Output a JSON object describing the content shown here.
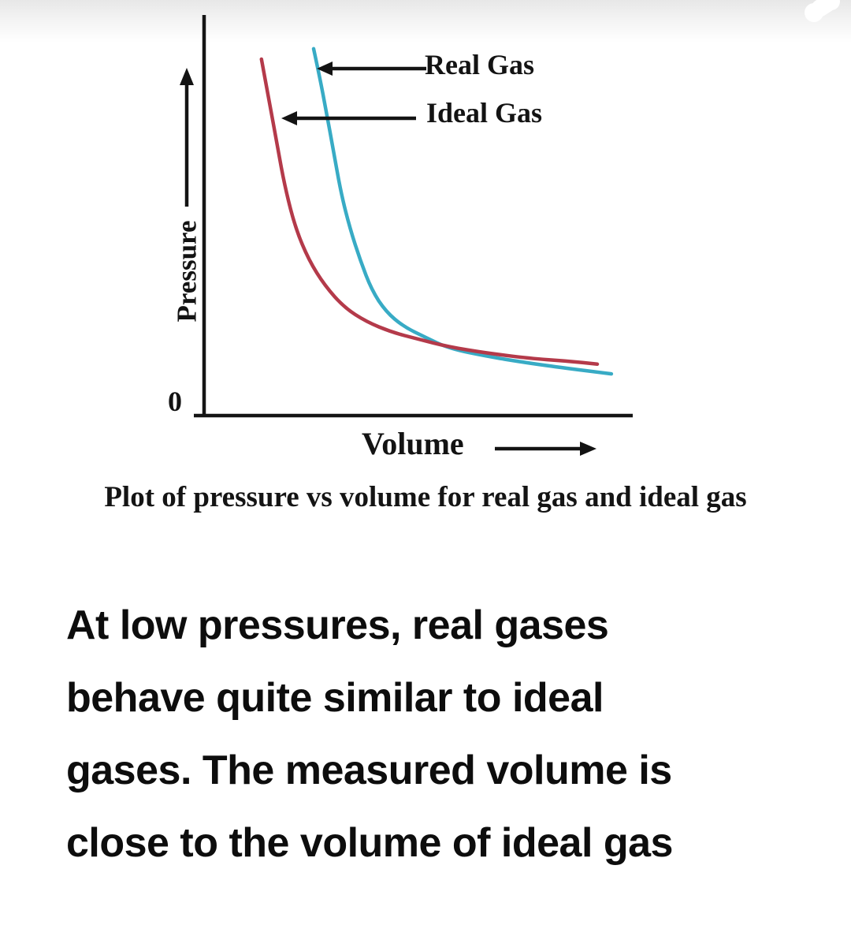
{
  "figure": {
    "curve_labels": {
      "real": "Real Gas",
      "ideal": "Ideal Gas"
    },
    "axis_labels": {
      "y": "Pressure",
      "x": "Volume",
      "origin": "0"
    },
    "caption": "Plot of pressure vs volume for real gas and ideal gas",
    "colors": {
      "real_gas_curve": "#38abc5",
      "ideal_gas_curve": "#b43a4a",
      "axis": "#151515"
    }
  },
  "chart_data": {
    "type": "line",
    "title": "Plot of pressure vs volume for real gas and ideal gas",
    "xlabel": "Volume",
    "ylabel": "Pressure",
    "x_range": [
      0,
      10
    ],
    "y_range": [
      0,
      10
    ],
    "grid": false,
    "tick_labels": {
      "x": [],
      "y": [
        "0"
      ]
    },
    "legend": "arrow annotations inside plot, top area",
    "annotations": [
      {
        "text": "Real Gas",
        "points_to": "cyan curve"
      },
      {
        "text": "Ideal Gas",
        "points_to": "red curve"
      }
    ],
    "series": [
      {
        "name": "Real Gas",
        "color": "#38abc5",
        "points": [
          [
            2.56,
            9.14
          ],
          [
            2.71,
            8.39
          ],
          [
            2.85,
            7.6
          ],
          [
            3.02,
            6.62
          ],
          [
            3.2,
            5.54
          ],
          [
            3.41,
            4.66
          ],
          [
            3.65,
            3.87
          ],
          [
            3.92,
            3.12
          ],
          [
            4.25,
            2.59
          ],
          [
            4.66,
            2.22
          ],
          [
            5.17,
            1.95
          ],
          [
            5.73,
            1.67
          ],
          [
            6.65,
            1.47
          ],
          [
            7.39,
            1.34
          ],
          [
            8.31,
            1.2
          ],
          [
            9.52,
            1.04
          ]
        ]
      },
      {
        "name": "Ideal Gas",
        "color": "#b43a4a",
        "points": [
          [
            1.34,
            8.88
          ],
          [
            1.53,
            7.8
          ],
          [
            1.71,
            6.72
          ],
          [
            1.9,
            5.64
          ],
          [
            2.14,
            4.66
          ],
          [
            2.45,
            3.87
          ],
          [
            2.82,
            3.24
          ],
          [
            3.28,
            2.69
          ],
          [
            3.79,
            2.34
          ],
          [
            4.38,
            2.08
          ],
          [
            4.99,
            1.91
          ],
          [
            5.73,
            1.71
          ],
          [
            6.65,
            1.55
          ],
          [
            7.75,
            1.41
          ],
          [
            8.49,
            1.36
          ],
          [
            9.19,
            1.28
          ]
        ]
      }
    ],
    "values_note": "Axes are unlabeled in the figure; point coordinates are normalized 0-10 estimates read from the plot. Curves cross at approximately (5.7, 1.7)."
  },
  "body_text": {
    "lines": [
      "At low pressures, real gases",
      "behave quite similar to ideal",
      "gases. The measured volume is",
      "close to the volume of ideal gas"
    ]
  }
}
